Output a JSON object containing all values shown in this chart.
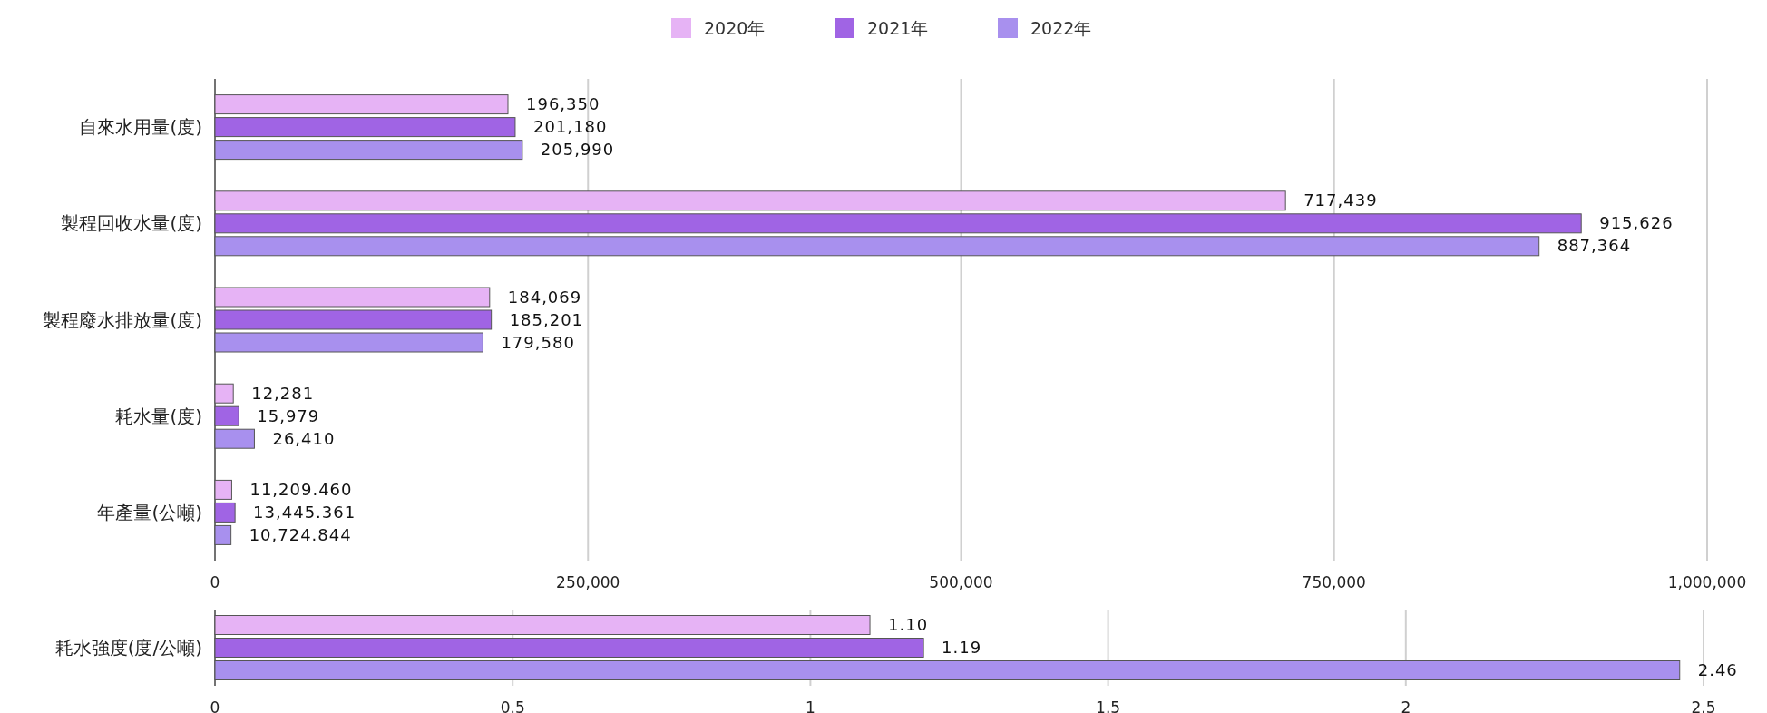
{
  "chart_data": [
    {
      "type": "bar",
      "orientation": "horizontal",
      "legend": "top",
      "grid": "x",
      "categories": [
        "自來水用量(度)",
        "製程回收水量(度)",
        "製程廢水排放量(度)",
        "耗水量(度)",
        "年產量(公噸)"
      ],
      "xlim": [
        0,
        1000000
      ],
      "xticks": [
        0,
        {
          "value": 250000,
          "label": "250,000"
        },
        {
          "value": 500000,
          "label": "500,000"
        },
        {
          "value": 750000,
          "label": "750,000"
        },
        {
          "value": 1000000,
          "label": "1,000,000"
        }
      ],
      "series": [
        {
          "name": "2020年",
          "color": "#e6b3f5",
          "values": [
            196350,
            717439,
            184069,
            12281,
            11209.46
          ],
          "value_labels": [
            "196,350",
            "717,439",
            "184,069",
            "12,281",
            "11,209.460"
          ]
        },
        {
          "name": "2021年",
          "color": "#a064e4",
          "values": [
            201180,
            915626,
            185201,
            15979,
            13445.361
          ],
          "value_labels": [
            "201,180",
            "915,626",
            "185,201",
            "15,979",
            "13,445.361"
          ]
        },
        {
          "name": "2022年",
          "color": "#a890ee",
          "values": [
            205990,
            887364,
            179580,
            26410,
            10724.844
          ],
          "value_labels": [
            "205,990",
            "887,364",
            "179,580",
            "26,410",
            "10,724.844"
          ]
        }
      ]
    },
    {
      "type": "bar",
      "orientation": "horizontal",
      "grid": "x",
      "categories": [
        "耗水強度(度/公噸)"
      ],
      "xlim": [
        0,
        2.5
      ],
      "xticks": [
        0,
        0.5,
        1,
        1.5,
        2,
        2.5
      ],
      "series": [
        {
          "color": "#e6b3f5",
          "values": [
            1.1
          ],
          "value_labels": [
            "1.10"
          ]
        },
        {
          "color": "#a064e4",
          "values": [
            1.19
          ],
          "value_labels": [
            "1.19"
          ]
        },
        {
          "color": "#a890ee",
          "values": [
            2.46
          ],
          "value_labels": [
            "2.46"
          ]
        }
      ]
    }
  ]
}
